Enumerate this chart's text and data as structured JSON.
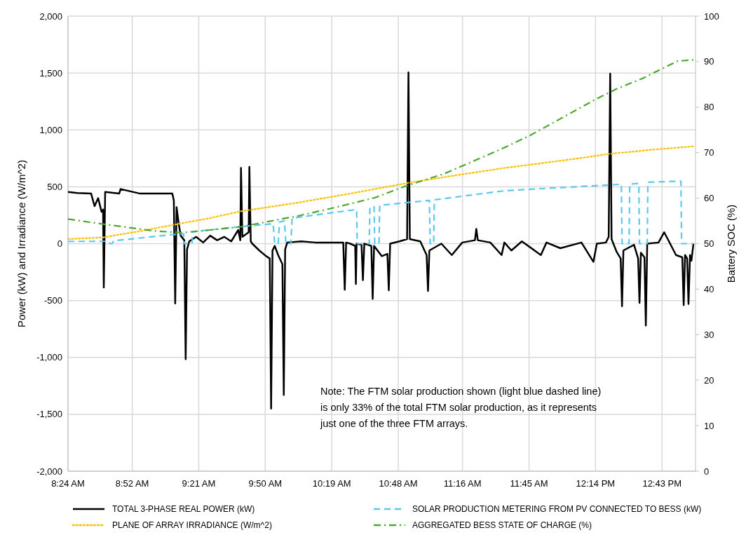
{
  "chart_data": {
    "type": "line",
    "ylabel": "Power (kW) and  Irradiance (W/m^2)",
    "y2label": "Battery SOC (%)",
    "xlim": [
      8.4,
      12.96
    ],
    "xticks": [
      {
        "value": 8.4,
        "label": "8:24 AM"
      },
      {
        "value": 8.8667,
        "label": "8:52 AM"
      },
      {
        "value": 9.35,
        "label": "9:21 AM"
      },
      {
        "value": 9.8333,
        "label": "9:50 AM"
      },
      {
        "value": 10.3167,
        "label": "10:19 AM"
      },
      {
        "value": 10.8,
        "label": "10:48 AM"
      },
      {
        "value": 11.2667,
        "label": "11:16 AM"
      },
      {
        "value": 11.75,
        "label": "11:45 AM"
      },
      {
        "value": 12.2333,
        "label": "12:14 PM"
      },
      {
        "value": 12.7167,
        "label": "12:43 PM"
      }
    ],
    "ylim": [
      -2000,
      2000
    ],
    "yticks": [
      {
        "value": -2000,
        "label": "-2,000"
      },
      {
        "value": -1500,
        "label": "-1,500"
      },
      {
        "value": -1000,
        "label": "-1,000"
      },
      -500,
      0,
      500,
      {
        "value": 1000,
        "label": "1,000"
      },
      {
        "value": 1500,
        "label": "1,500"
      },
      {
        "value": 2000,
        "label": "2,000"
      }
    ],
    "y2lim": [
      0,
      100
    ],
    "y2ticks": [
      0,
      10,
      20,
      30,
      40,
      50,
      60,
      70,
      80,
      90,
      100
    ],
    "grid": true,
    "legend": "bottom",
    "annotations": [
      "Note: The FTM solar production shown (light blue dashed line) is only 33% of the total FTM solar production, as it represents just one of the three FTM arrays."
    ],
    "series": [
      {
        "name": "TOTAL 3-PHASE REAL POWER (kW)",
        "color": "#000000",
        "line_style": "solid",
        "x": [
          8.4,
          8.466,
          8.568,
          8.593,
          8.619,
          8.644,
          8.655,
          8.66,
          8.67,
          8.772,
          8.782,
          8.924,
          9.077,
          9.158,
          9.169,
          9.179,
          9.189,
          9.204,
          9.219,
          9.245,
          9.255,
          9.265,
          9.281,
          9.331,
          9.382,
          9.433,
          9.484,
          9.535,
          9.586,
          9.637,
          9.652,
          9.657,
          9.667,
          9.713,
          9.718,
          9.728,
          9.739,
          9.79,
          9.84,
          9.866,
          9.876,
          9.886,
          9.902,
          9.927,
          9.958,
          9.968,
          9.978,
          9.993,
          10.095,
          10.197,
          10.4,
          10.411,
          10.421,
          10.451,
          10.487,
          10.492,
          10.497,
          10.533,
          10.543,
          10.553,
          10.579,
          10.604,
          10.614,
          10.624,
          10.68,
          10.721,
          10.731,
          10.741,
          10.808,
          10.864,
          10.874,
          10.884,
          10.96,
          11.006,
          11.016,
          11.026,
          11.113,
          11.189,
          11.265,
          11.357,
          11.367,
          11.378,
          11.469,
          11.551,
          11.571,
          11.622,
          11.698,
          11.836,
          11.877,
          11.978,
          12.131,
          12.218,
          12.243,
          12.309,
          12.329,
          12.34,
          12.35,
          12.386,
          12.416,
          12.426,
          12.436,
          12.513,
          12.543,
          12.553,
          12.563,
          12.589,
          12.599,
          12.609,
          12.691,
          12.732,
          12.767,
          12.818,
          12.864,
          12.874,
          12.884,
          12.899,
          12.909,
          12.92,
          12.93,
          12.945
        ],
        "values": [
          455,
          445,
          440,
          330,
          400,
          280,
          300,
          -385,
          455,
          440,
          480,
          440,
          440,
          440,
          380,
          -525,
          320,
          180,
          70,
          30,
          -1015,
          -50,
          20,
          60,
          10,
          70,
          30,
          60,
          20,
          120,
          30,
          665,
          60,
          100,
          675,
          20,
          0,
          -60,
          -110,
          -130,
          -1450,
          -60,
          -20,
          -100,
          -180,
          -1330,
          -50,
          10,
          20,
          10,
          10,
          -405,
          10,
          0,
          -20,
          -355,
          0,
          -10,
          -320,
          0,
          -10,
          -20,
          -485,
          -20,
          -110,
          -90,
          -410,
          0,
          20,
          40,
          1505,
          40,
          20,
          -100,
          -415,
          -60,
          0,
          -100,
          10,
          30,
          130,
          30,
          10,
          -100,
          10,
          -60,
          20,
          -100,
          10,
          -40,
          10,
          -160,
          0,
          10,
          60,
          1495,
          40,
          -70,
          -130,
          -550,
          -60,
          -10,
          -130,
          -520,
          -80,
          -120,
          -720,
          0,
          10,
          100,
          20,
          -100,
          -120,
          -540,
          -100,
          -130,
          -530,
          -100,
          -150,
          0
        ]
      },
      {
        "name": "PLANE OF ARRAY IRRADIANCE (W/m^2)",
        "color": "#ffc000",
        "line_style": "dotted",
        "x": [
          8.4,
          8.655,
          8.924,
          9.164,
          9.433,
          9.657,
          10.044,
          10.451,
          10.874,
          11.215,
          11.571,
          11.826,
          12.08,
          12.34,
          12.64,
          12.945
        ],
        "values": [
          40,
          55,
          110,
          165,
          225,
          285,
          355,
          440,
          535,
          600,
          665,
          705,
          745,
          790,
          825,
          855
        ]
      },
      {
        "name": "SOLAR PRODUCTION METERING FROM PV CONNECTED TO BESS (kW)",
        "color": "#5bc8f0",
        "line_style": "dashed",
        "x": [
          8.4,
          8.695,
          8.705,
          8.721,
          8.731,
          9.164,
          9.24,
          9.245,
          9.301,
          9.306,
          9.657,
          9.891,
          9.902,
          9.927,
          9.937,
          9.973,
          9.983,
          10.019,
          10.029,
          10.497,
          10.502,
          10.589,
          10.594,
          10.624,
          10.629,
          10.66,
          10.665,
          11.026,
          11.032,
          11.057,
          11.062,
          11.571,
          11.759,
          12.421,
          12.426,
          12.477,
          12.482,
          12.548,
          12.553,
          12.609,
          12.614,
          12.854,
          12.859,
          12.945
        ],
        "values": [
          20,
          20,
          0,
          0,
          25,
          80,
          85,
          0,
          0,
          105,
          150,
          175,
          0,
          0,
          190,
          200,
          0,
          0,
          225,
          300,
          0,
          0,
          320,
          325,
          0,
          0,
          337,
          380,
          0,
          0,
          385,
          465,
          478,
          522,
          0,
          0,
          523,
          530,
          0,
          0,
          540,
          550,
          0,
          0
        ]
      },
      {
        "name": "AGGREGATED BESS STATE OF CHARGE (%)",
        "color": "#4ea72e",
        "line_style": "dashdot",
        "axis": "y2",
        "x": [
          8.4,
          8.655,
          9.026,
          9.23,
          9.433,
          9.657,
          9.983,
          10.044,
          10.349,
          10.629,
          10.858,
          11.128,
          11.571,
          11.759,
          12.233,
          12.386,
          12.574,
          12.727,
          12.828,
          12.945
        ],
        "values": [
          55.4,
          54.3,
          52.8,
          52.4,
          53.0,
          53.7,
          55.6,
          55.9,
          58.0,
          60.1,
          62.7,
          65.3,
          71.1,
          73.8,
          81.7,
          84.0,
          86.3,
          88.6,
          90.1,
          90.4
        ]
      }
    ]
  }
}
